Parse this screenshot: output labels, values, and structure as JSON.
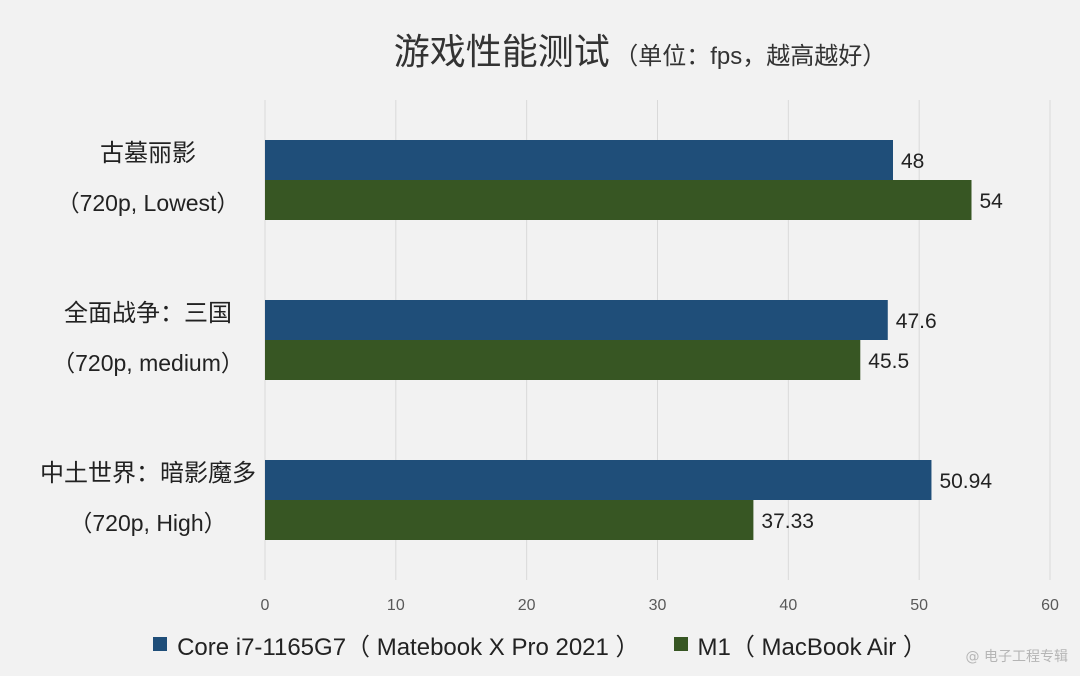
{
  "chart_data": {
    "type": "bar",
    "orientation": "horizontal",
    "title": "游戏性能测试",
    "subtitle": "（单位：fps，越高越好）",
    "categories": [
      {
        "line1": "古墓丽影",
        "line2": "（720p, Lowest）"
      },
      {
        "line1": "全面战争：三国",
        "line2": "（720p, medium）"
      },
      {
        "line1": "中土世界：暗影魔多",
        "line2": "（720p, High）"
      }
    ],
    "series": [
      {
        "name": "Core i7-1165G7（ Matebook X Pro 2021 ）",
        "color": "#1f4e79",
        "values": [
          48,
          47.6,
          50.94
        ],
        "labels": [
          "48",
          "47.6",
          "50.94"
        ]
      },
      {
        "name": "M1（ MacBook Air ）",
        "color": "#375623",
        "values": [
          54,
          45.5,
          37.33
        ],
        "labels": [
          "54",
          "45.5",
          "37.33"
        ]
      }
    ],
    "xlim": [
      0,
      60
    ],
    "xticks": [
      0,
      10,
      20,
      30,
      40,
      50,
      60
    ],
    "grid": "vertical",
    "legend": "bottom"
  },
  "watermark": "@ 电子工程专辑"
}
